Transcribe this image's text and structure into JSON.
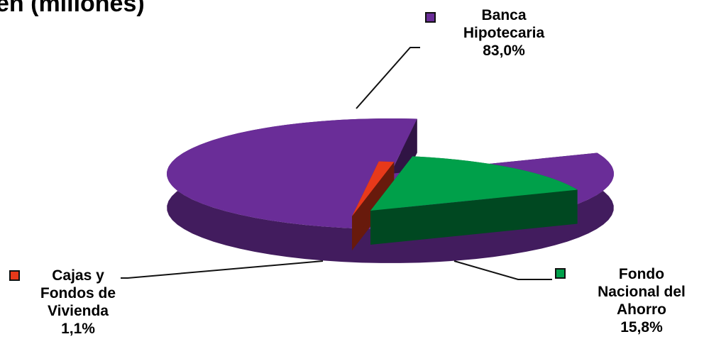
{
  "chart_data": {
    "type": "pie",
    "title": "en (millones)",
    "slices": [
      {
        "label": "Banca Hipotecaria",
        "label_lines": [
          "Banca",
          "Hipotecaria"
        ],
        "value": 83.0,
        "value_label": "83,0%",
        "color": "#6a2d98"
      },
      {
        "label": "Fondo Nacional del Ahorro",
        "label_lines": [
          "Fondo",
          "Nacional del",
          "Ahorro"
        ],
        "value": 15.8,
        "value_label": "15,8%",
        "color": "#00a04a"
      },
      {
        "label": "Cajas y Fondos de Vivienda",
        "label_lines": [
          "Cajas y",
          "Fondos de",
          "Vivienda"
        ],
        "value": 1.1,
        "value_label": "1,1%",
        "color": "#e8391a"
      }
    ],
    "legend": "labels-with-markers",
    "exploded": true,
    "style": "3d"
  }
}
